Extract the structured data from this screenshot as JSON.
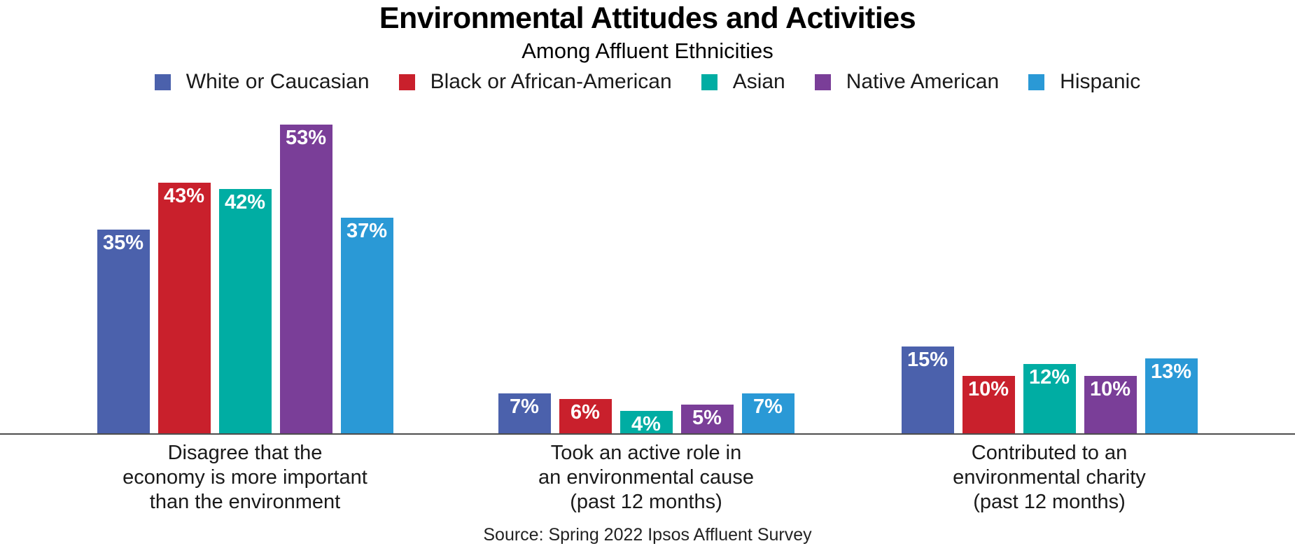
{
  "chart_data": {
    "type": "bar",
    "title": "Environmental Attitudes and Activities",
    "subtitle": "Among Affluent Ethnicities",
    "categories": [
      "Disagree that the\neconomy is more important\nthan the environment",
      "Took an active role in\nan environmental cause\n(past 12 months)",
      "Contributed to an\nenvironmental charity\n(past 12 months)"
    ],
    "series": [
      {
        "name": "White or Caucasian",
        "color": "#4B61AC",
        "values": [
          35,
          7,
          15
        ]
      },
      {
        "name": "Black or African-American",
        "color": "#C9202C",
        "values": [
          43,
          6,
          10
        ]
      },
      {
        "name": "Asian",
        "color": "#00ADA3",
        "values": [
          42,
          4,
          12
        ]
      },
      {
        "name": "Native American",
        "color": "#7A3E98",
        "values": [
          53,
          5,
          10
        ]
      },
      {
        "name": "Hispanic",
        "color": "#2A99D6",
        "values": [
          37,
          7,
          13
        ]
      }
    ],
    "value_suffix": "%",
    "value_label_color": "#ffffff",
    "axis_line_color": "#4d4d4d",
    "ylim": [
      0,
      74
    ],
    "grid": false,
    "legend_position": "top",
    "source": "Source: Spring 2022 Ipsos Affluent Survey"
  }
}
